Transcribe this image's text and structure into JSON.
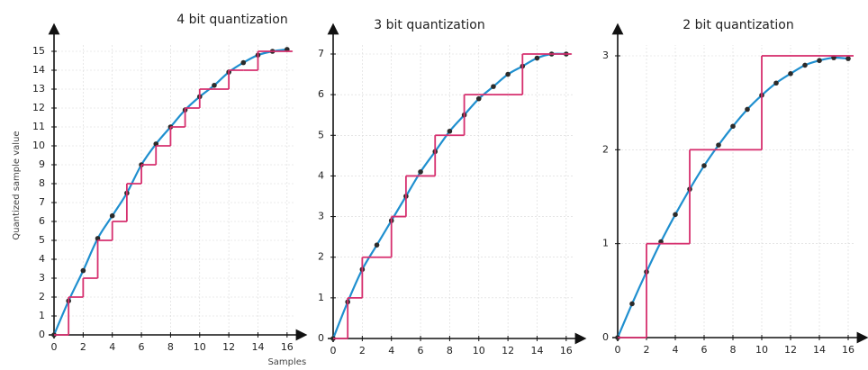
{
  "chart_data": [
    {
      "type": "line",
      "title": "4 bit quantization",
      "xlabel": "Samples",
      "ylabel": "Quantized sample value",
      "x": [
        0,
        1,
        2,
        3,
        4,
        5,
        6,
        7,
        8,
        9,
        10,
        11,
        12,
        13,
        14,
        15,
        16
      ],
      "xlim": [
        0,
        17
      ],
      "ylim": [
        0,
        15.8
      ],
      "xticks": [
        0,
        2,
        4,
        6,
        8,
        10,
        12,
        14,
        16
      ],
      "yticks": [
        0,
        1,
        2,
        3,
        4,
        5,
        6,
        7,
        8,
        9,
        10,
        11,
        12,
        13,
        14,
        15
      ],
      "grid": true,
      "series": [
        {
          "style": "smooth",
          "color": "#1f8fcf",
          "marker_color": "#2b2b2b",
          "values": [
            0,
            1.8,
            3.4,
            5.1,
            6.3,
            7.5,
            9.0,
            10.1,
            11.0,
            11.9,
            12.6,
            13.2,
            13.9,
            14.4,
            14.8,
            15.0,
            15.1
          ]
        },
        {
          "style": "step",
          "color": "#d62f6e",
          "values": [
            0,
            2,
            3,
            5,
            6,
            8,
            9,
            10,
            11,
            12,
            13,
            13,
            14,
            14,
            15,
            15,
            15
          ]
        }
      ]
    },
    {
      "type": "line",
      "title": "3 bit quantization",
      "x": [
        0,
        1,
        2,
        3,
        4,
        5,
        6,
        7,
        8,
        9,
        10,
        11,
        12,
        13,
        14,
        15,
        16
      ],
      "xlim": [
        0,
        17
      ],
      "ylim": [
        0,
        7.4
      ],
      "xticks": [
        0,
        2,
        4,
        6,
        8,
        10,
        12,
        14,
        16
      ],
      "yticks": [
        0,
        1,
        2,
        3,
        4,
        5,
        6,
        7
      ],
      "grid": true,
      "series": [
        {
          "style": "smooth",
          "color": "#1f8fcf",
          "marker_color": "#2b2b2b",
          "values": [
            0,
            0.9,
            1.7,
            2.3,
            2.9,
            3.5,
            4.1,
            4.6,
            5.1,
            5.5,
            5.9,
            6.2,
            6.5,
            6.7,
            6.9,
            7.0,
            7.0
          ]
        },
        {
          "style": "step",
          "color": "#d62f6e",
          "values": [
            0,
            1,
            2,
            2,
            3,
            4,
            4,
            5,
            5,
            6,
            6,
            6,
            6,
            7,
            7,
            7,
            7
          ]
        }
      ]
    },
    {
      "type": "line",
      "title": "2 bit quantization",
      "x": [
        0,
        1,
        2,
        3,
        4,
        5,
        6,
        7,
        8,
        9,
        10,
        11,
        12,
        13,
        14,
        15,
        16
      ],
      "xlim": [
        0,
        17
      ],
      "ylim": [
        0,
        3.15
      ],
      "xticks": [
        0,
        2,
        4,
        6,
        8,
        10,
        12,
        14,
        16
      ],
      "yticks": [
        0,
        1,
        2,
        3
      ],
      "grid": true,
      "series": [
        {
          "style": "smooth",
          "color": "#1f8fcf",
          "marker_color": "#2b2b2b",
          "values": [
            0,
            0.36,
            0.7,
            1.02,
            1.31,
            1.58,
            1.83,
            2.05,
            2.25,
            2.43,
            2.58,
            2.71,
            2.81,
            2.9,
            2.95,
            2.98,
            2.97
          ]
        },
        {
          "style": "step",
          "color": "#d62f6e",
          "values": [
            0,
            0,
            1,
            1,
            1,
            2,
            2,
            2,
            2,
            2,
            3,
            3,
            3,
            3,
            3,
            3,
            3
          ]
        }
      ]
    }
  ]
}
